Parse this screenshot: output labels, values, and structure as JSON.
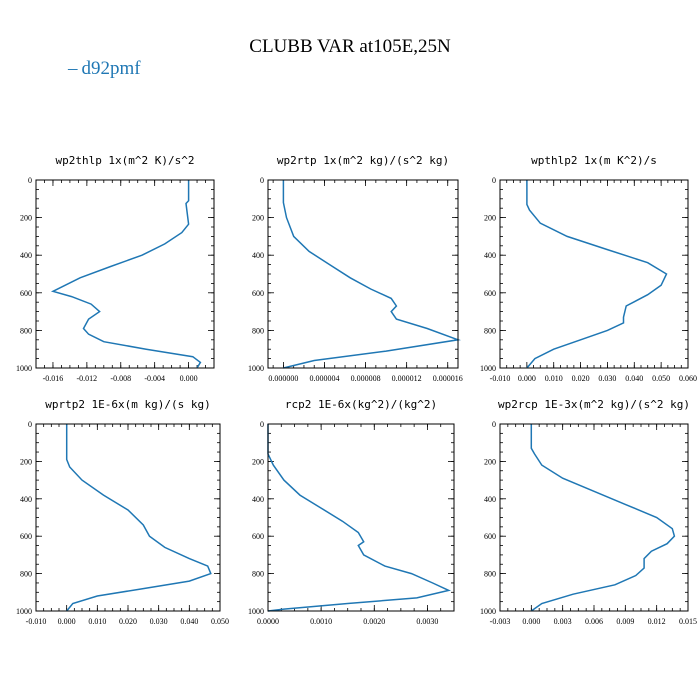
{
  "title": "CLUBB VAR at105E,25N",
  "legend": {
    "marker": "–",
    "label": "d92pmf",
    "color": "#1f77b4"
  },
  "chart_data": [
    {
      "type": "line",
      "title": "wp2thlp  1x(m^2 K)/s^2",
      "xlim": [
        -0.018,
        0.003
      ],
      "ylim": [
        1000,
        0
      ],
      "xticks": [
        -0.016,
        -0.012,
        -0.008,
        -0.004,
        0.0
      ],
      "xtick_labels": [
        "-0.016",
        "-0.012",
        "-0.008",
        "-0.004",
        "0.000"
      ],
      "yticks": [
        0,
        200,
        400,
        600,
        800,
        1000
      ],
      "ytick_labels": [
        "0",
        "200",
        "400",
        "600",
        "800",
        "1000"
      ],
      "series": [
        {
          "color": "#1f77b4",
          "x": [
            0.0,
            0.0,
            -0.0003,
            0.0,
            -0.0008,
            -0.0028,
            -0.0055,
            -0.0092,
            -0.0128,
            -0.016,
            -0.0138,
            -0.0115,
            -0.0105,
            -0.0118,
            -0.0124,
            -0.0118,
            -0.01,
            -0.005,
            0.0005,
            0.0014,
            0.001
          ],
          "y": [
            0,
            110,
            125,
            235,
            280,
            340,
            400,
            460,
            520,
            592,
            620,
            660,
            700,
            740,
            790,
            820,
            860,
            900,
            940,
            970,
            1000
          ]
        }
      ]
    },
    {
      "type": "line",
      "title": "wp2rtp  1x(m^2 kg)/(s^2 kg)",
      "xlim": [
        -1.5e-06,
        1.7e-05
      ],
      "ylim": [
        1000,
        0
      ],
      "xticks": [
        0.0,
        4e-06,
        8e-06,
        1.2e-05,
        1.6e-05
      ],
      "xtick_labels": [
        "0.000000",
        "0.000004",
        "0.000008",
        "0.000012",
        "0.000016"
      ],
      "yticks": [
        0,
        200,
        400,
        600,
        800,
        1000
      ],
      "ytick_labels": [
        "0",
        "200",
        "400",
        "600",
        "800",
        "1000"
      ],
      "series": [
        {
          "color": "#1f77b4",
          "x": [
            0.0,
            0.0,
            3e-07,
            1e-06,
            2.5e-06,
            4.5e-06,
            6.5e-06,
            8.5e-06,
            1.05e-05,
            1.1e-05,
            1.05e-05,
            1.1e-05,
            1.4e-05,
            1.7e-05,
            1e-05,
            3e-06,
            0.0
          ],
          "y": [
            0,
            120,
            200,
            300,
            380,
            450,
            520,
            580,
            630,
            670,
            700,
            740,
            790,
            850,
            910,
            960,
            1000
          ]
        }
      ]
    },
    {
      "type": "line",
      "title": "wpthlp2  1x(m K^2)/s",
      "xlim": [
        -0.01,
        0.06
      ],
      "ylim": [
        1000,
        0
      ],
      "xticks": [
        -0.01,
        0.0,
        0.01,
        0.02,
        0.03,
        0.04,
        0.05,
        0.06
      ],
      "xtick_labels": [
        "-0.010",
        "0.000",
        "0.010",
        "0.020",
        "0.030",
        "0.040",
        "0.050",
        "0.060"
      ],
      "yticks": [
        0,
        200,
        400,
        600,
        800,
        1000
      ],
      "ytick_labels": [
        "0",
        "200",
        "400",
        "600",
        "800",
        "1000"
      ],
      "series": [
        {
          "color": "#1f77b4",
          "x": [
            0.0,
            0.0,
            0.001,
            0.005,
            0.015,
            0.03,
            0.045,
            0.052,
            0.05,
            0.045,
            0.037,
            0.036,
            0.036,
            0.03,
            0.02,
            0.01,
            0.003,
            0.0
          ],
          "y": [
            0,
            130,
            160,
            230,
            300,
            370,
            440,
            500,
            560,
            610,
            670,
            730,
            760,
            800,
            850,
            900,
            950,
            1000
          ]
        }
      ]
    },
    {
      "type": "line",
      "title": "wprtp2  1E-6x(m kg)/(s kg)",
      "xlim": [
        -0.01,
        0.05
      ],
      "ylim": [
        1000,
        0
      ],
      "xticks": [
        -0.01,
        0.0,
        0.01,
        0.02,
        0.03,
        0.04,
        0.05
      ],
      "xtick_labels": [
        "-0.010",
        "0.000",
        "0.010",
        "0.020",
        "0.030",
        "0.040",
        "0.050"
      ],
      "yticks": [
        0,
        200,
        400,
        600,
        800,
        1000
      ],
      "ytick_labels": [
        "0",
        "200",
        "400",
        "600",
        "800",
        "1000"
      ],
      "series": [
        {
          "color": "#1f77b4",
          "x": [
            0.0,
            0.0,
            0.001,
            0.005,
            0.012,
            0.02,
            0.025,
            0.027,
            0.032,
            0.04,
            0.046,
            0.047,
            0.04,
            0.025,
            0.01,
            0.002,
            0.0
          ],
          "y": [
            0,
            190,
            230,
            300,
            380,
            460,
            540,
            600,
            660,
            720,
            760,
            800,
            840,
            880,
            920,
            960,
            1000
          ]
        }
      ]
    },
    {
      "type": "line",
      "title": "rcp2  1E-6x(kg^2)/(kg^2)",
      "xlim": [
        0.0,
        0.0035
      ],
      "ylim": [
        1000,
        0
      ],
      "xticks": [
        0.0,
        0.001,
        0.002,
        0.003
      ],
      "xtick_labels": [
        "0.0000",
        "0.0010",
        "0.0020",
        "0.0030"
      ],
      "yticks": [
        0,
        200,
        400,
        600,
        800,
        1000
      ],
      "ytick_labels": [
        "0",
        "200",
        "400",
        "600",
        "800",
        "1000"
      ],
      "series": [
        {
          "color": "#1f77b4",
          "x": [
            0.0,
            0.0,
            0.0001,
            0.0003,
            0.0006,
            0.001,
            0.0014,
            0.0017,
            0.0018,
            0.0017,
            0.0018,
            0.0022,
            0.0027,
            0.0031,
            0.0034,
            0.0028,
            0.0015,
            0.0003,
            0.0
          ],
          "y": [
            0,
            160,
            220,
            300,
            380,
            450,
            520,
            580,
            630,
            650,
            700,
            760,
            800,
            850,
            890,
            930,
            960,
            990,
            1000
          ]
        }
      ]
    },
    {
      "type": "line",
      "title": "wp2rcp  1E-3x(m^2 kg)/(s^2 kg)",
      "xlim": [
        -0.003,
        0.015
      ],
      "ylim": [
        1000,
        0
      ],
      "xticks": [
        -0.003,
        0.0,
        0.003,
        0.006,
        0.009,
        0.012,
        0.015
      ],
      "xtick_labels": [
        "-0.003",
        "0.000",
        "0.003",
        "0.006",
        "0.009",
        "0.012",
        "0.015"
      ],
      "yticks": [
        0,
        200,
        400,
        600,
        800,
        1000
      ],
      "ytick_labels": [
        "0",
        "200",
        "400",
        "600",
        "800",
        "1000"
      ],
      "series": [
        {
          "color": "#1f77b4",
          "x": [
            0.0,
            0.0,
            0.0003,
            0.001,
            0.003,
            0.006,
            0.009,
            0.012,
            0.0135,
            0.0137,
            0.013,
            0.0115,
            0.0108,
            0.0108,
            0.01,
            0.008,
            0.004,
            0.001,
            0.0
          ],
          "y": [
            0,
            130,
            160,
            220,
            290,
            360,
            430,
            500,
            560,
            600,
            640,
            680,
            720,
            770,
            810,
            860,
            910,
            960,
            1000
          ]
        }
      ]
    }
  ]
}
